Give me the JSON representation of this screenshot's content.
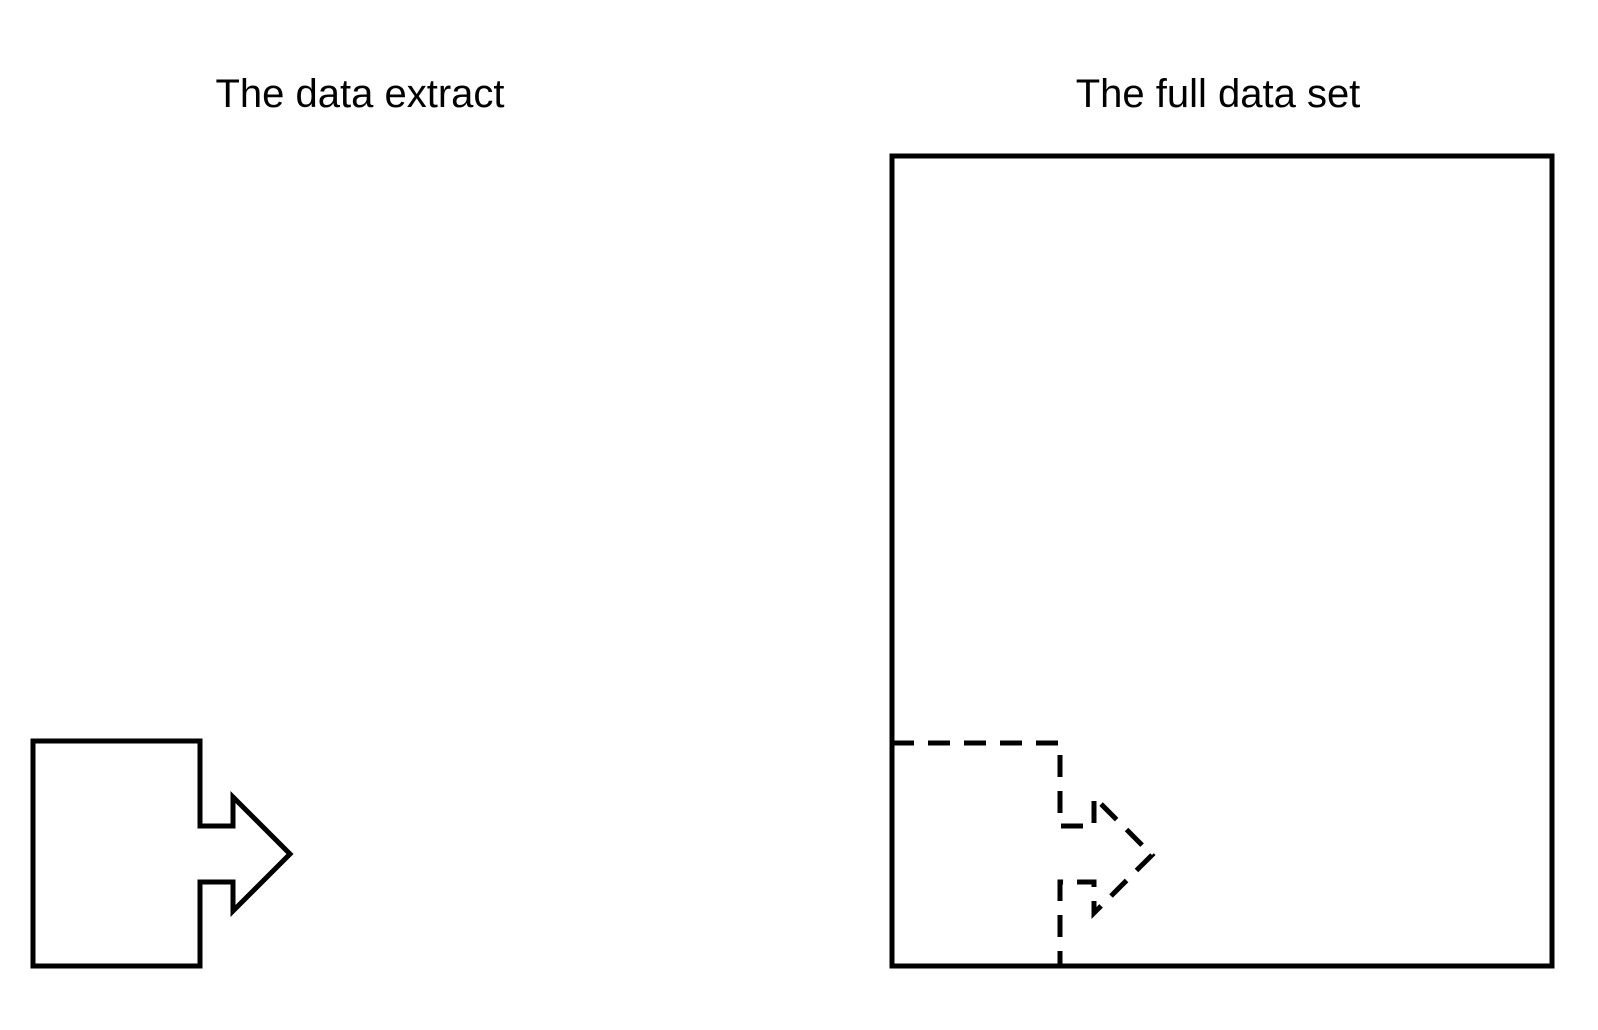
{
  "diagram": {
    "extract_title": "The data extract",
    "full_title": "The full data set"
  },
  "colors": {
    "stroke": "#000000",
    "background": "#ffffff"
  }
}
